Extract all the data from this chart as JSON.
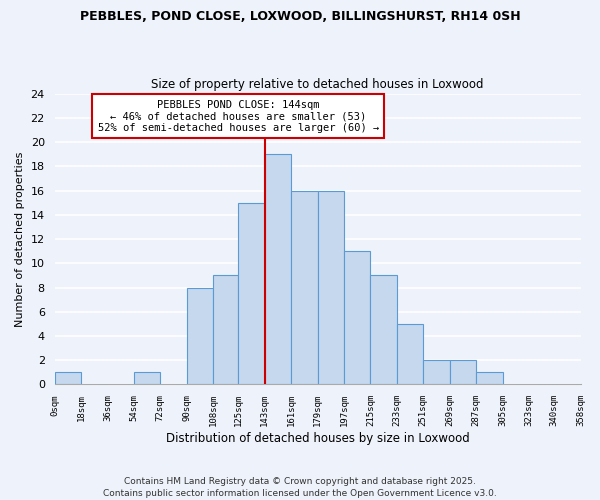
{
  "title": "PEBBLES, POND CLOSE, LOXWOOD, BILLINGSHURST, RH14 0SH",
  "subtitle": "Size of property relative to detached houses in Loxwood",
  "xlabel": "Distribution of detached houses by size in Loxwood",
  "ylabel": "Number of detached properties",
  "bin_edges": [
    0,
    18,
    36,
    54,
    72,
    90,
    108,
    125,
    143,
    161,
    179,
    197,
    215,
    233,
    251,
    269,
    287,
    305,
    323,
    340,
    358
  ],
  "bin_counts": [
    1,
    0,
    0,
    1,
    0,
    8,
    9,
    15,
    19,
    16,
    16,
    11,
    9,
    5,
    2,
    2,
    1,
    0,
    0,
    0
  ],
  "bar_color": "#c5d8ed",
  "bar_edge_color": "#5b9bd5",
  "vline_x": 143,
  "vline_color": "#cc0000",
  "annotation_title": "PEBBLES POND CLOSE: 144sqm",
  "annotation_line1": "← 46% of detached houses are smaller (53)",
  "annotation_line2": "52% of semi-detached houses are larger (60) →",
  "annotation_box_color": "#ffffff",
  "annotation_box_edge": "#cc0000",
  "ylim": [
    0,
    24
  ],
  "yticks": [
    0,
    2,
    4,
    6,
    8,
    10,
    12,
    14,
    16,
    18,
    20,
    22,
    24
  ],
  "tick_labels": [
    "0sqm",
    "18sqm",
    "36sqm",
    "54sqm",
    "72sqm",
    "90sqm",
    "108sqm",
    "125sqm",
    "143sqm",
    "161sqm",
    "179sqm",
    "197sqm",
    "215sqm",
    "233sqm",
    "251sqm",
    "269sqm",
    "287sqm",
    "305sqm",
    "323sqm",
    "340sqm",
    "358sqm"
  ],
  "footnote": "Contains HM Land Registry data © Crown copyright and database right 2025.\nContains public sector information licensed under the Open Government Licence v3.0.",
  "background_color": "#eef2fa",
  "grid_color": "#ffffff",
  "title_fontsize": 9.0,
  "subtitle_fontsize": 8.5,
  "footnote_fontsize": 6.5
}
